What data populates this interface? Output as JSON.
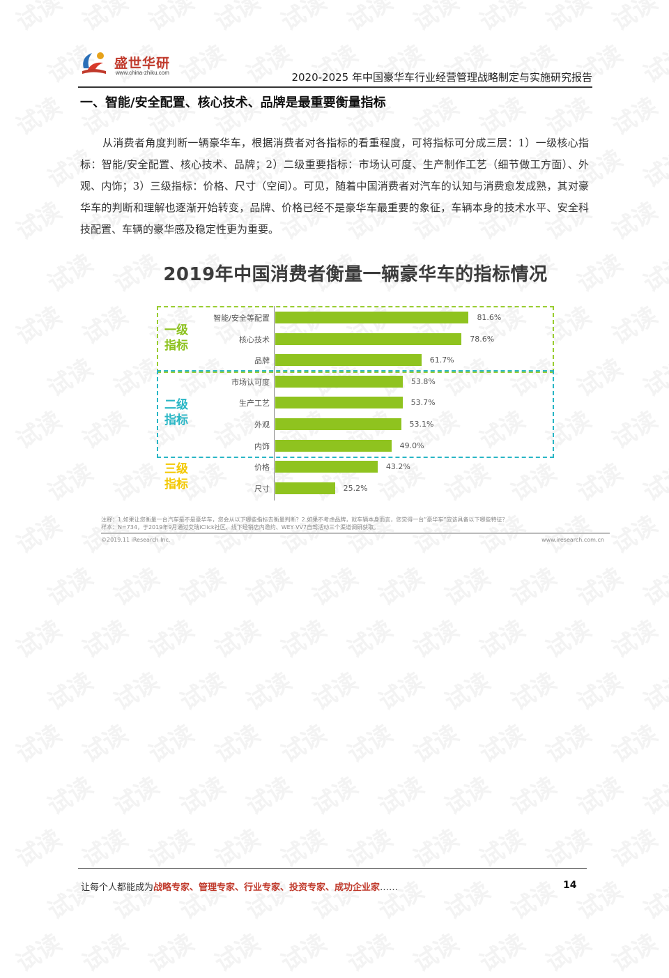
{
  "watermark_text": "试读",
  "header": {
    "logo_name": "盛世华研",
    "logo_url": "www.china-zhiku.com",
    "report_title": "2020-2025 年中国豪华车行业经营管理战略制定与实施研究报告"
  },
  "section": {
    "heading": "一、智能/安全配置、核心技术、品牌是最重要衡量指标",
    "paragraph": "从消费者角度判断一辆豪华车，根据消费者对各指标的看重程度，可将指标可分成三层：1）一级核心指标：智能/安全配置、核心技术、品牌；2）二级重要指标：市场认可度、生产制作工艺（细节做工方面）、外观、内饰；3）三级指标：价格、尺寸（空间）。可见，随着中国消费者对汽车的认知与消费愈发成熟，其对豪华车的判断和理解也逐渐开始转变，品牌、价格已经不是豪华车最重要的象征，车辆本身的技术水平、安全科技配置、车辆的豪华感及稳定性更为重要。"
  },
  "chart_data": {
    "type": "bar",
    "orientation": "horizontal",
    "title": "2019年中国消费者衡量一辆豪华车的指标情况",
    "categories": [
      "智能/安全等配置",
      "核心技术",
      "品牌",
      "市场认可度",
      "生产工艺",
      "外观",
      "内饰",
      "价格",
      "尺寸"
    ],
    "values": [
      81.6,
      78.6,
      61.7,
      53.8,
      53.7,
      53.1,
      49.0,
      43.2,
      25.2
    ],
    "value_labels": [
      "81.6%",
      "78.6%",
      "61.7%",
      "53.8%",
      "53.7%",
      "53.1%",
      "49.0%",
      "43.2%",
      "25.2%"
    ],
    "tiers": [
      {
        "label_line1": "一级",
        "label_line2": "指标",
        "color": "#8dc21f",
        "count": 3
      },
      {
        "label_line1": "二级",
        "label_line2": "指标",
        "color": "#29b6c5",
        "count": 4
      },
      {
        "label_line1": "三级",
        "label_line2": "指标",
        "color": "#f3c800",
        "count": 2
      }
    ],
    "bar_color": "#8fc31f",
    "xlim": [
      0,
      100
    ],
    "note_line1": "注释：1.如果让您衡量一台汽车是不是豪华车，您会从以下哪些指标去衡量判断？2.如果不考虑品牌，就车辆本身而言，您觉得一台”豪华车”应该具备以下哪些特征？",
    "note_line2": "样本：N=734，于2019年9月通过艾瑞iClick社区、线下经销店内邀约、WEY VV7自驾活动三个渠道调研获取。",
    "copyright": "©2019.11 iResearch Inc.",
    "site": "www.iresearch.com.cn"
  },
  "footer": {
    "prefix": "让每个人都能成为",
    "highlight": "战略专家、管理专家、行业专家、投资专家、成功企业家",
    "suffix": "……",
    "page_number": "14"
  }
}
